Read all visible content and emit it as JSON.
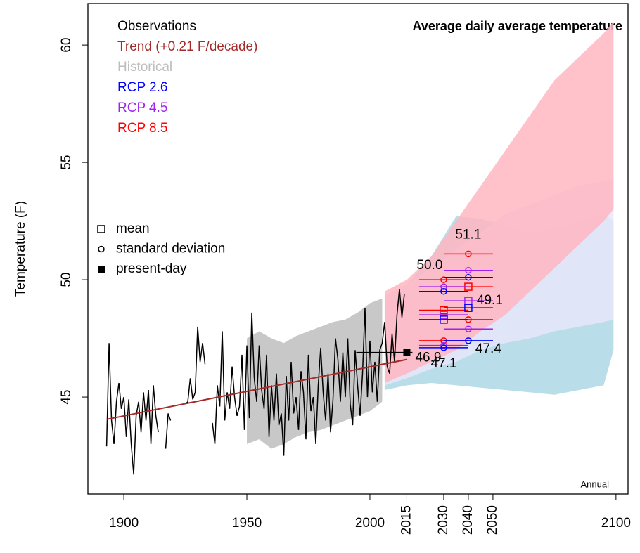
{
  "chart_data": {
    "type": "line",
    "title": "Average daily average temperature",
    "y_label": "Temperature (F)",
    "annotation": "Annual",
    "xlim": [
      1885.4,
      2104.9
    ],
    "ylim": [
      40.87,
      61.77
    ],
    "xticks": [
      1900,
      1950,
      2000,
      2100
    ],
    "xticks_rotated": [
      2015,
      2030,
      2040,
      2050
    ],
    "yticks": [
      45,
      50,
      55,
      60
    ],
    "series": [
      {
        "name": "Observations",
        "color": "#000000",
        "x": [
          1893,
          1894,
          1895,
          1896,
          1897,
          1898,
          1899,
          1900,
          1901,
          1902,
          1903,
          1904,
          1905,
          1906,
          1907,
          1908,
          1909,
          1910,
          1911,
          1912,
          1913,
          1914,
          1915,
          1916,
          1917,
          1918,
          1919,
          1920,
          1921,
          1922,
          1923,
          1924,
          1925,
          1926,
          1927,
          1928,
          1929,
          1930,
          1931,
          1932,
          1933,
          1934,
          1935,
          1936,
          1937,
          1938,
          1939,
          1940,
          1941,
          1942,
          1943,
          1944,
          1945,
          1946,
          1947,
          1948,
          1949,
          1950,
          1951,
          1952,
          1953,
          1954,
          1955,
          1956,
          1957,
          1958,
          1959,
          1960,
          1961,
          1962,
          1963,
          1964,
          1965,
          1966,
          1967,
          1968,
          1969,
          1970,
          1971,
          1972,
          1973,
          1974,
          1975,
          1976,
          1977,
          1978,
          1979,
          1980,
          1981,
          1982,
          1983,
          1984,
          1985,
          1986,
          1987,
          1988,
          1989,
          1990,
          1991,
          1992,
          1993,
          1994,
          1995,
          1996,
          1997,
          1998,
          1999,
          2000,
          2001,
          2002,
          2003,
          2004,
          2005,
          2006,
          2007,
          2008,
          2009,
          2010,
          2011,
          2012,
          2013,
          2014
        ],
        "values": [
          42.9,
          47.3,
          44.0,
          43.0,
          44.8,
          45.6,
          44.5,
          45.0,
          43.3,
          44.9,
          43.0,
          41.7,
          44.2,
          44.8,
          43.5,
          45.2,
          44.0,
          45.3,
          43.0,
          45.5,
          44.2,
          43.5,
          null,
          null,
          42.8,
          44.3,
          44.0,
          null,
          null,
          null,
          null,
          null,
          44.7,
          44.8,
          45.8,
          44.9,
          45.2,
          48.0,
          46.5,
          47.3,
          46.4,
          null,
          null,
          43.9,
          43.0,
          45.5,
          44.6,
          47.8,
          44.0,
          45.2,
          44.5,
          46.3,
          45.0,
          44.2,
          44.6,
          46.8,
          43.6,
          47.2,
          44.1,
          48.6,
          45.8,
          44.8,
          47.2,
          45.3,
          44.5,
          46.8,
          43.3,
          45.5,
          44.0,
          46.0,
          43.8,
          44.3,
          42.5,
          45.9,
          44.0,
          46.5,
          44.3,
          45.0,
          43.6,
          46.1,
          45.2,
          43.2,
          46.8,
          44.4,
          45.0,
          43.0,
          45.5,
          47.1,
          45.2,
          44.0,
          46.0,
          43.5,
          44.9,
          47.5,
          46.6,
          44.8,
          46.9,
          45.0,
          47.5,
          44.7,
          43.8,
          47.0,
          45.5,
          44.2,
          46.0,
          48.8,
          45.0,
          47.4,
          45.2,
          46.5,
          44.8,
          47.0,
          47.3,
          48.2,
          46.3,
          46.0,
          47.7,
          46.5,
          48.5,
          49.6,
          48.4,
          49.4
        ]
      },
      {
        "name": "Trend (+0.21 F/decade)",
        "color": "#a52a2a",
        "x": [
          1893,
          2015
        ],
        "values": [
          44.05,
          46.6
        ]
      },
      {
        "name": "Historical",
        "color": "#bebebe",
        "x": [
          1950,
          1955,
          1960,
          1965,
          1970,
          1975,
          1980,
          1985,
          1990,
          1995,
          2000,
          2005
        ],
        "lower": [
          43.0,
          43.2,
          42.8,
          43.0,
          43.3,
          43.5,
          43.6,
          43.8,
          44.0,
          44.2,
          44.4,
          44.8
        ],
        "upper": [
          47.5,
          47.8,
          47.5,
          47.3,
          47.6,
          47.8,
          48.0,
          48.2,
          48.3,
          48.6,
          49.0,
          49.2
        ]
      },
      {
        "name": "RCP 2.6",
        "color": "#0000ff",
        "band_color": "#add8e6",
        "x": [
          2006,
          2015,
          2025,
          2035,
          2045,
          2055,
          2065,
          2075,
          2085,
          2095,
          2099
        ],
        "lower": [
          45.3,
          45.5,
          45.6,
          45.5,
          45.4,
          45.3,
          45.2,
          45.1,
          45.3,
          45.5,
          47.0
        ],
        "upper": [
          49.3,
          49.8,
          51.0,
          52.7,
          52.6,
          52.3,
          52.0,
          52.2,
          52.5,
          52.8,
          52.5
        ],
        "periods": [
          {
            "x": 2030,
            "mean": 48.3,
            "upper": 49.5,
            "lower": 47.1
          },
          {
            "x": 2040,
            "mean": 48.8,
            "upper": 50.1,
            "lower": 47.4
          }
        ]
      },
      {
        "name": "RCP 4.5",
        "color": "#a020f0",
        "band_color": "#e6e6fa",
        "x": [
          2006,
          2015,
          2025,
          2035,
          2045,
          2055,
          2065,
          2075,
          2085,
          2095,
          2099
        ],
        "lower": [
          45.5,
          45.8,
          46.2,
          46.5,
          47.0,
          47.3,
          47.5,
          47.8,
          48.0,
          48.2,
          48.3
        ],
        "upper": [
          49.3,
          49.8,
          50.5,
          51.3,
          52.0,
          52.8,
          53.2,
          53.6,
          54.0,
          54.2,
          54.3
        ],
        "periods": [
          {
            "x": 2030,
            "mean": 48.5,
            "upper": 49.7,
            "lower": 47.2
          },
          {
            "x": 2040,
            "mean": 49.1,
            "upper": 50.4,
            "lower": 47.9
          }
        ]
      },
      {
        "name": "RCP 8.5",
        "color": "#ff0000",
        "band_color": "#ffb6c1",
        "x": [
          2006,
          2015,
          2025,
          2035,
          2045,
          2055,
          2065,
          2075,
          2085,
          2095,
          2099
        ],
        "lower": [
          45.6,
          46.0,
          46.5,
          47.0,
          47.8,
          48.5,
          49.5,
          50.5,
          51.5,
          52.5,
          53.0
        ],
        "upper": [
          49.5,
          50.0,
          51.0,
          52.5,
          54.0,
          55.5,
          57.0,
          58.5,
          59.5,
          60.5,
          61.0
        ],
        "periods": [
          {
            "x": 2030,
            "mean": 48.7,
            "upper": 50.0,
            "lower": 47.4
          },
          {
            "x": 2040,
            "mean": 49.7,
            "upper": 51.1,
            "lower": 48.3
          }
        ]
      }
    ],
    "present_day": {
      "x": 2015,
      "value": 46.9
    },
    "marker_legend": [
      "mean",
      "standard deviation",
      "present-day"
    ],
    "labels": [
      {
        "x": 2040,
        "value": 51.1,
        "label": "51.1"
      },
      {
        "x": 2030,
        "value": 50.0,
        "label": "50.0"
      },
      {
        "x": 2040,
        "value": 49.1,
        "label": "49.1"
      },
      {
        "x": 2040,
        "value": 47.4,
        "label": "47.4"
      },
      {
        "x": 2030,
        "value": 47.1,
        "label": "47.1"
      },
      {
        "x": 2015,
        "value": 46.9,
        "label": "46.9"
      }
    ]
  }
}
